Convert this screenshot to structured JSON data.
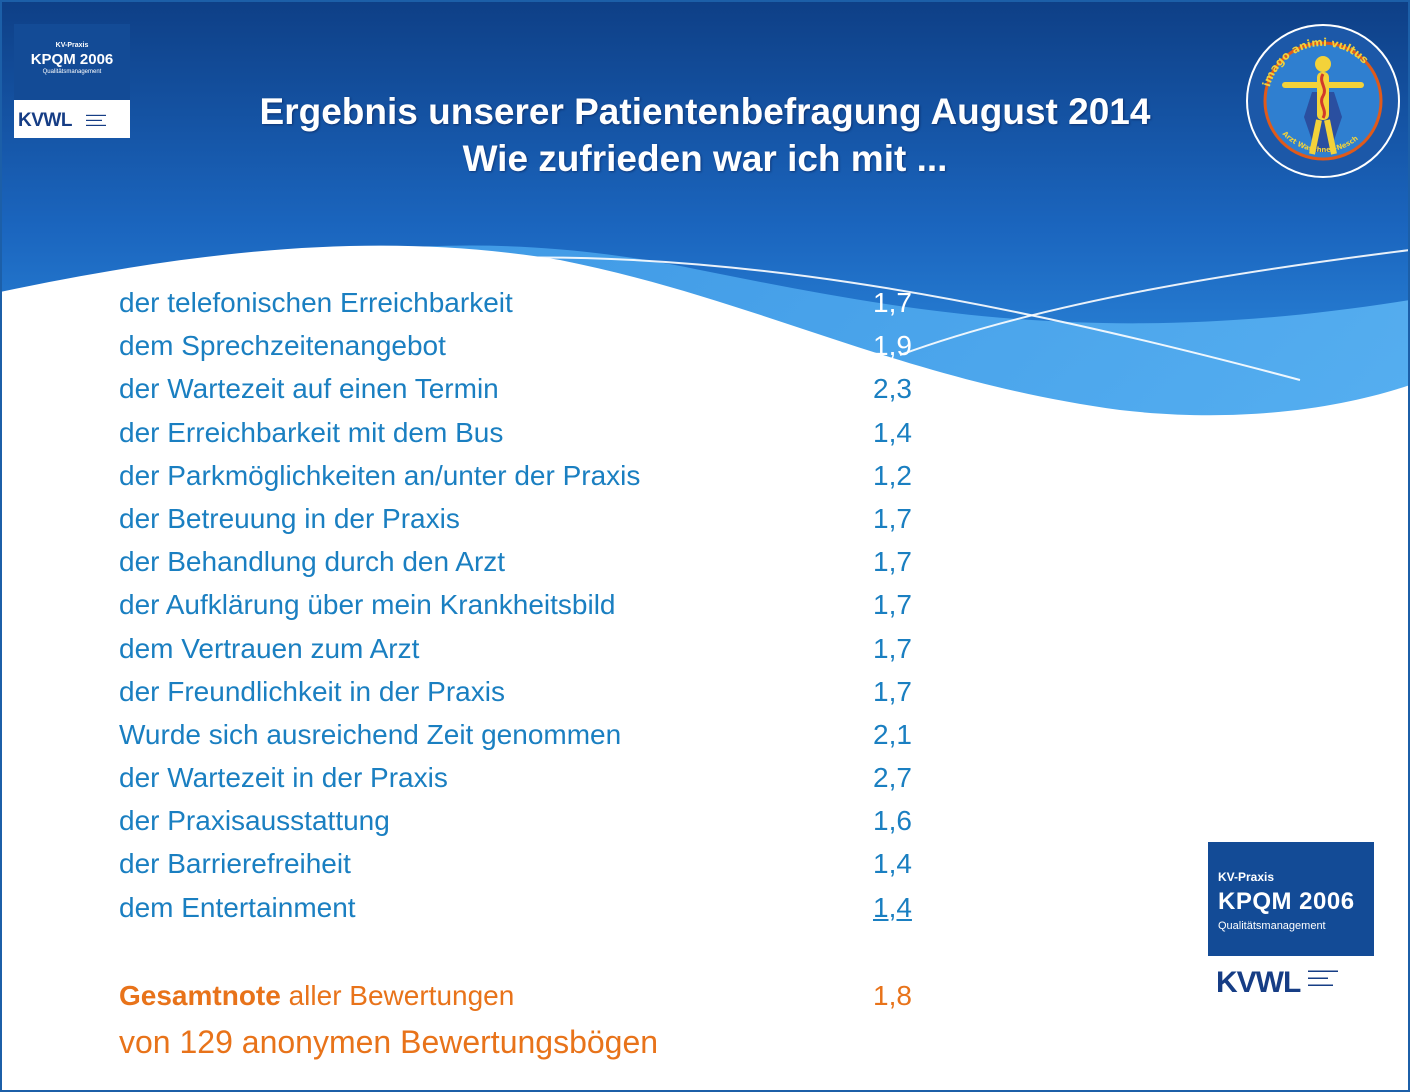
{
  "header": {
    "title_line1": "Ergebnis unserer Patientenbefragung August 2014",
    "title_line2": "Wie zufrieden war ich mit ..."
  },
  "logo_small": {
    "kv": "KV-Praxis",
    "kpqm": "KPQM 2006",
    "qm": "Qualitätsmanagement",
    "kwvl": "KVWL"
  },
  "logo_large": {
    "kv": "KV-Praxis",
    "kpqm": "KPQM 2006",
    "qm": "Qualitätsmanagement",
    "kwvl": "KVWL"
  },
  "seal": {
    "top_text": "imago animi vultus",
    "bottom_text": "Arzt Waschner-Nesch"
  },
  "ratings": [
    {
      "label": "der telefonischen Erreichbarkeit",
      "value": "1,7"
    },
    {
      "label": "dem Sprechzeitenangebot",
      "value": "1,9"
    },
    {
      "label": "der Wartezeit auf  einen Termin",
      "value": "2,3"
    },
    {
      "label": "der Erreichbarkeit mit dem Bus",
      "value": "1,4"
    },
    {
      "label": "der Parkmöglichkeiten an/unter der Praxis",
      "value": "1,2"
    },
    {
      "label": "der Betreuung in der Praxis",
      "value": "1,7"
    },
    {
      "label": "der Behandlung durch den Arzt",
      "value": "1,7"
    },
    {
      "label": "der Aufklärung über mein Krankheitsbild",
      "value": "1,7"
    },
    {
      "label": "dem Vertrauen zum Arzt",
      "value": "1,7"
    },
    {
      "label": "der Freundlichkeit in der Praxis",
      "value": "1,7"
    },
    {
      "label": "Wurde sich ausreichend Zeit genommen",
      "value": "2,1"
    },
    {
      "label": "der Wartezeit in der Praxis",
      "value": "2,7"
    },
    {
      "label": "der Praxisausstattung",
      "value": "1,6"
    },
    {
      "label": "der Barrierefreiheit",
      "value": "1,4"
    },
    {
      "label": "dem Entertainment",
      "value": "1,4"
    }
  ],
  "total": {
    "label_bold": "Gesamtnote",
    "label_rest": " aller Bewertungen",
    "value": "1,8"
  },
  "respondents": "von 129 anonymen Bewertungsbögen",
  "colors": {
    "header_blue": "#1a5fb0",
    "text_blue": "#1a7fc1",
    "accent_orange": "#e8731a"
  }
}
